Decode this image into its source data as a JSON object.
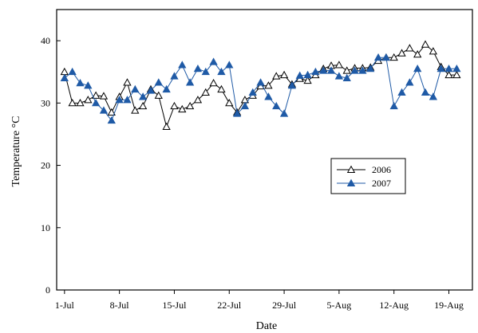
{
  "chart_data": {
    "type": "line",
    "title": "",
    "xlabel": "Date",
    "ylabel": "Temperature °C",
    "ylim": [
      0,
      45
    ],
    "yticks": [
      0,
      10,
      20,
      30,
      40
    ],
    "xlim": [
      "2006-06-30",
      "2006-08-22"
    ],
    "xticks": [
      {
        "date": "2006-07-01",
        "label": "1-Jul"
      },
      {
        "date": "2006-07-08",
        "label": "8-Jul"
      },
      {
        "date": "2006-07-15",
        "label": "15-Jul"
      },
      {
        "date": "2006-07-22",
        "label": "22-Jul"
      },
      {
        "date": "2006-07-29",
        "label": "29-Jul"
      },
      {
        "date": "2006-08-05",
        "label": "5-Aug"
      },
      {
        "date": "2006-08-12",
        "label": "12-Aug"
      },
      {
        "date": "2006-08-19",
        "label": "19-Aug"
      }
    ],
    "grid": false,
    "legend_position": "center-right",
    "series": [
      {
        "name": "2006",
        "color": "#000000",
        "marker": "open-triangle",
        "points": [
          [
            "2006-07-01",
            35.0
          ],
          [
            "2006-07-02",
            30.0
          ],
          [
            "2006-07-03",
            30.0
          ],
          [
            "2006-07-04",
            30.5
          ],
          [
            "2006-07-05",
            31.2
          ],
          [
            "2006-07-06",
            31.1
          ],
          [
            "2006-07-07",
            28.5
          ],
          [
            "2006-07-08",
            31.0
          ],
          [
            "2006-07-09",
            33.3
          ],
          [
            "2006-07-10",
            28.8
          ],
          [
            "2006-07-11",
            29.5
          ],
          [
            "2006-07-12",
            32.2
          ],
          [
            "2006-07-13",
            31.2
          ],
          [
            "2006-07-14",
            26.2
          ],
          [
            "2006-07-15",
            29.5
          ],
          [
            "2006-07-16",
            29.0
          ],
          [
            "2006-07-17",
            29.5
          ],
          [
            "2006-07-18",
            30.5
          ],
          [
            "2006-07-19",
            31.7
          ],
          [
            "2006-07-20",
            33.2
          ],
          [
            "2006-07-21",
            32.2
          ],
          [
            "2006-07-22",
            30.0
          ],
          [
            "2006-07-23",
            28.5
          ],
          [
            "2006-07-24",
            30.5
          ],
          [
            "2006-07-25",
            31.2
          ],
          [
            "2006-07-26",
            32.7
          ],
          [
            "2006-07-27",
            32.8
          ],
          [
            "2006-07-28",
            34.3
          ],
          [
            "2006-07-29",
            34.5
          ],
          [
            "2006-07-30",
            33.0
          ],
          [
            "2006-07-31",
            33.9
          ],
          [
            "2006-08-01",
            33.6
          ],
          [
            "2006-08-02",
            34.5
          ],
          [
            "2006-08-03",
            35.5
          ],
          [
            "2006-08-04",
            36.0
          ],
          [
            "2006-08-05",
            36.1
          ],
          [
            "2006-08-06",
            35.2
          ],
          [
            "2006-08-07",
            35.6
          ],
          [
            "2006-08-08",
            35.6
          ],
          [
            "2006-08-09",
            35.7
          ],
          [
            "2006-08-10",
            36.8
          ],
          [
            "2006-08-11",
            37.3
          ],
          [
            "2006-08-12",
            37.3
          ],
          [
            "2006-08-13",
            38.0
          ],
          [
            "2006-08-14",
            38.8
          ],
          [
            "2006-08-15",
            37.8
          ],
          [
            "2006-08-16",
            39.4
          ],
          [
            "2006-08-17",
            38.3
          ],
          [
            "2006-08-18",
            35.8
          ],
          [
            "2006-08-19",
            34.5
          ],
          [
            "2006-08-20",
            34.5
          ]
        ]
      },
      {
        "name": "2007",
        "color": "#1f5aa6",
        "marker": "filled-triangle",
        "points": [
          [
            "2006-07-01",
            34.0
          ],
          [
            "2006-07-02",
            35.0
          ],
          [
            "2006-07-03",
            33.2
          ],
          [
            "2006-07-04",
            32.8
          ],
          [
            "2006-07-05",
            30.0
          ],
          [
            "2006-07-06",
            28.8
          ],
          [
            "2006-07-07",
            27.2
          ],
          [
            "2006-07-08",
            30.5
          ],
          [
            "2006-07-09",
            30.5
          ],
          [
            "2006-07-10",
            32.2
          ],
          [
            "2006-07-11",
            31.0
          ],
          [
            "2006-07-12",
            32.0
          ],
          [
            "2006-07-13",
            33.3
          ],
          [
            "2006-07-14",
            32.2
          ],
          [
            "2006-07-15",
            34.3
          ],
          [
            "2006-07-16",
            36.1
          ],
          [
            "2006-07-17",
            33.3
          ],
          [
            "2006-07-18",
            35.5
          ],
          [
            "2006-07-19",
            35.0
          ],
          [
            "2006-07-20",
            36.6
          ],
          [
            "2006-07-21",
            35.0
          ],
          [
            "2006-07-22",
            36.1
          ],
          [
            "2006-07-23",
            28.3
          ],
          [
            "2006-07-24",
            29.5
          ],
          [
            "2006-07-25",
            31.7
          ],
          [
            "2006-07-26",
            33.3
          ],
          [
            "2006-07-27",
            31.0
          ],
          [
            "2006-07-28",
            29.5
          ],
          [
            "2006-07-29",
            28.3
          ],
          [
            "2006-07-30",
            32.8
          ],
          [
            "2006-07-31",
            34.4
          ],
          [
            "2006-08-01",
            34.5
          ],
          [
            "2006-08-02",
            35.0
          ],
          [
            "2006-08-03",
            35.2
          ],
          [
            "2006-08-04",
            35.2
          ],
          [
            "2006-08-05",
            34.3
          ],
          [
            "2006-08-06",
            34.0
          ],
          [
            "2006-08-07",
            35.2
          ],
          [
            "2006-08-08",
            35.2
          ],
          [
            "2006-08-09",
            35.5
          ],
          [
            "2006-08-10",
            37.3
          ],
          [
            "2006-08-11",
            37.3
          ],
          [
            "2006-08-12",
            29.5
          ],
          [
            "2006-08-13",
            31.7
          ],
          [
            "2006-08-14",
            33.3
          ],
          [
            "2006-08-15",
            35.5
          ],
          [
            "2006-08-16",
            31.7
          ],
          [
            "2006-08-17",
            31.0
          ],
          [
            "2006-08-18",
            35.5
          ],
          [
            "2006-08-19",
            35.5
          ],
          [
            "2006-08-20",
            35.5
          ]
        ]
      }
    ]
  }
}
